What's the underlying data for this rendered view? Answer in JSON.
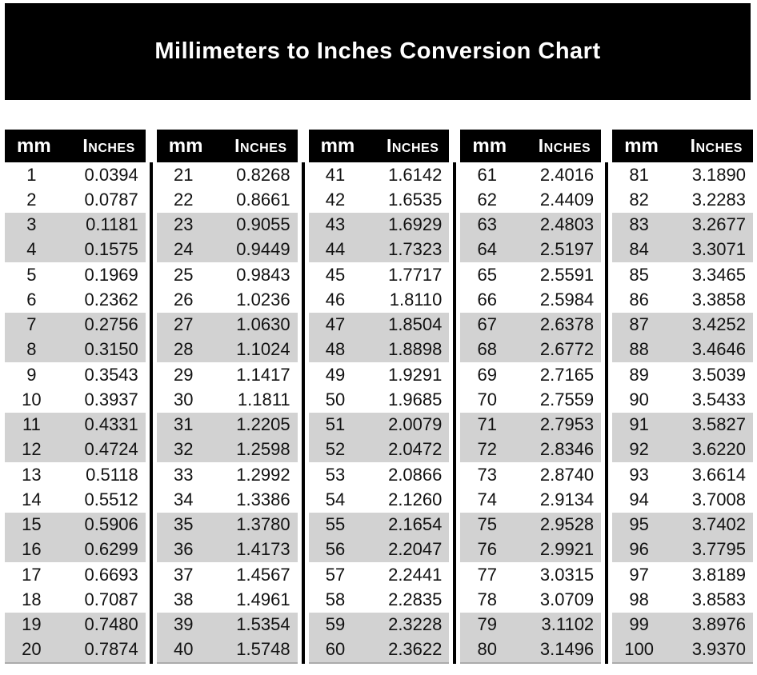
{
  "title": "Millimeters to Inches Conversion Chart",
  "colors": {
    "banner_bg": "#000000",
    "header_bg": "#000000",
    "row_bg": "#ffffff",
    "row_alt_bg": "#d2d2d2",
    "title_color": "#ffffff",
    "text_color": "#121212"
  },
  "table": {
    "col_mm_label": "mm",
    "col_inches_label": "Inches"
  },
  "chart_data": {
    "type": "table",
    "title": "Millimeters to Inches Conversion Chart",
    "columns": [
      "mm",
      "Inches"
    ],
    "column_groups": 5,
    "rows_per_group": 20,
    "row_shading_pattern": "pairs alternate white/gray starting with two white rows; gray pairs are rows 3-4, 7-8, 11-12, 15-16, 19-20",
    "groups": [
      [
        [
          "1",
          "0.0394"
        ],
        [
          "2",
          "0.0787"
        ],
        [
          "3",
          "0.1181"
        ],
        [
          "4",
          "0.1575"
        ],
        [
          "5",
          "0.1969"
        ],
        [
          "6",
          "0.2362"
        ],
        [
          "7",
          "0.2756"
        ],
        [
          "8",
          "0.3150"
        ],
        [
          "9",
          "0.3543"
        ],
        [
          "10",
          "0.3937"
        ],
        [
          "11",
          "0.4331"
        ],
        [
          "12",
          "0.4724"
        ],
        [
          "13",
          "0.5118"
        ],
        [
          "14",
          "0.5512"
        ],
        [
          "15",
          "0.5906"
        ],
        [
          "16",
          "0.6299"
        ],
        [
          "17",
          "0.6693"
        ],
        [
          "18",
          "0.7087"
        ],
        [
          "19",
          "0.7480"
        ],
        [
          "20",
          "0.7874"
        ]
      ],
      [
        [
          "21",
          "0.8268"
        ],
        [
          "22",
          "0.8661"
        ],
        [
          "23",
          "0.9055"
        ],
        [
          "24",
          "0.9449"
        ],
        [
          "25",
          "0.9843"
        ],
        [
          "26",
          "1.0236"
        ],
        [
          "27",
          "1.0630"
        ],
        [
          "28",
          "1.1024"
        ],
        [
          "29",
          "1.1417"
        ],
        [
          "30",
          "1.1811"
        ],
        [
          "31",
          "1.2205"
        ],
        [
          "32",
          "1.2598"
        ],
        [
          "33",
          "1.2992"
        ],
        [
          "34",
          "1.3386"
        ],
        [
          "35",
          "1.3780"
        ],
        [
          "36",
          "1.4173"
        ],
        [
          "37",
          "1.4567"
        ],
        [
          "38",
          "1.4961"
        ],
        [
          "39",
          "1.5354"
        ],
        [
          "40",
          "1.5748"
        ]
      ],
      [
        [
          "41",
          "1.6142"
        ],
        [
          "42",
          "1.6535"
        ],
        [
          "43",
          "1.6929"
        ],
        [
          "44",
          "1.7323"
        ],
        [
          "45",
          "1.7717"
        ],
        [
          "46",
          "1.8110"
        ],
        [
          "47",
          "1.8504"
        ],
        [
          "48",
          "1.8898"
        ],
        [
          "49",
          "1.9291"
        ],
        [
          "50",
          "1.9685"
        ],
        [
          "51",
          "2.0079"
        ],
        [
          "52",
          "2.0472"
        ],
        [
          "53",
          "2.0866"
        ],
        [
          "54",
          "2.1260"
        ],
        [
          "55",
          "2.1654"
        ],
        [
          "56",
          "2.2047"
        ],
        [
          "57",
          "2.2441"
        ],
        [
          "58",
          "2.2835"
        ],
        [
          "59",
          "2.3228"
        ],
        [
          "60",
          "2.3622"
        ]
      ],
      [
        [
          "61",
          "2.4016"
        ],
        [
          "62",
          "2.4409"
        ],
        [
          "63",
          "2.4803"
        ],
        [
          "64",
          "2.5197"
        ],
        [
          "65",
          "2.5591"
        ],
        [
          "66",
          "2.5984"
        ],
        [
          "67",
          "2.6378"
        ],
        [
          "68",
          "2.6772"
        ],
        [
          "69",
          "2.7165"
        ],
        [
          "70",
          "2.7559"
        ],
        [
          "71",
          "2.7953"
        ],
        [
          "72",
          "2.8346"
        ],
        [
          "73",
          "2.8740"
        ],
        [
          "74",
          "2.9134"
        ],
        [
          "75",
          "2.9528"
        ],
        [
          "76",
          "2.9921"
        ],
        [
          "77",
          "3.0315"
        ],
        [
          "78",
          "3.0709"
        ],
        [
          "79",
          "3.1102"
        ],
        [
          "80",
          "3.1496"
        ]
      ],
      [
        [
          "81",
          "3.1890"
        ],
        [
          "82",
          "3.2283"
        ],
        [
          "83",
          "3.2677"
        ],
        [
          "84",
          "3.3071"
        ],
        [
          "85",
          "3.3465"
        ],
        [
          "86",
          "3.3858"
        ],
        [
          "87",
          "3.4252"
        ],
        [
          "88",
          "3.4646"
        ],
        [
          "89",
          "3.5039"
        ],
        [
          "90",
          "3.5433"
        ],
        [
          "91",
          "3.5827"
        ],
        [
          "92",
          "3.6220"
        ],
        [
          "93",
          "3.6614"
        ],
        [
          "94",
          "3.7008"
        ],
        [
          "95",
          "3.7402"
        ],
        [
          "96",
          "3.7795"
        ],
        [
          "97",
          "3.8189"
        ],
        [
          "98",
          "3.8583"
        ],
        [
          "99",
          "3.8976"
        ],
        [
          "100",
          "3.9370"
        ]
      ]
    ]
  }
}
